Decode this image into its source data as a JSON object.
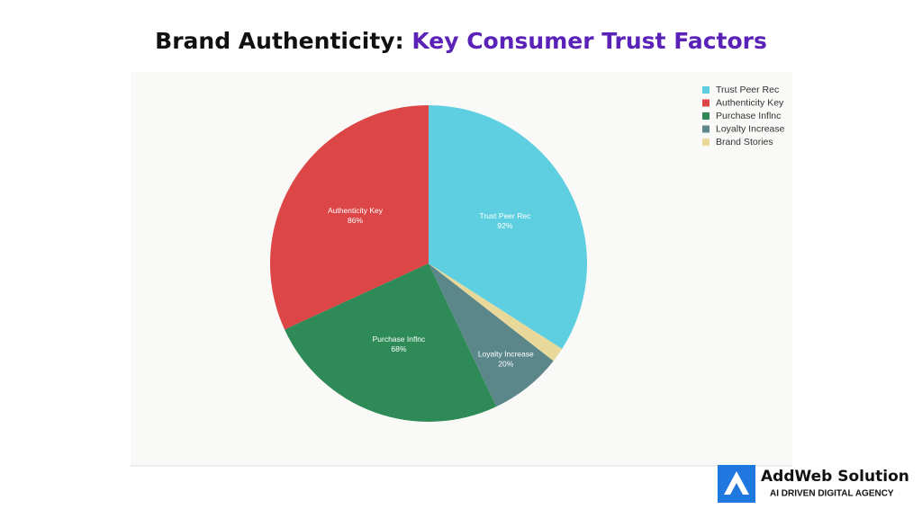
{
  "chart_data": {
    "type": "pie",
    "title": [
      "Brand Authenticity:",
      "Key Consumer Trust Factors"
    ],
    "categories": [
      "Trust Peer Rec",
      "Authenticity Key",
      "Purchase Inflnc",
      "Loyalty Increase",
      "Brand Stories"
    ],
    "values": [
      92,
      86,
      68,
      20,
      4
    ],
    "value_labels": [
      "92%",
      "86%",
      "68%",
      "20%",
      null
    ],
    "colors": [
      "#5ecfe0",
      "#dc4646",
      "#2e8b57",
      "#5b878b",
      "#e8d99a"
    ],
    "direction": "counterclockwise",
    "legend": "top-right"
  },
  "branding": {
    "name": "AddWeb Solution",
    "tagline": "AI DRIVEN DIGITAL AGENCY"
  }
}
